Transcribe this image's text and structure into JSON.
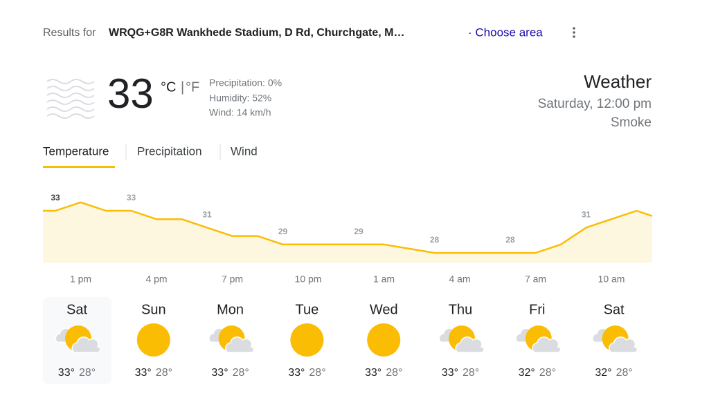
{
  "header": {
    "prefix": "Results for",
    "location": "WRQG+G8R Wankhede Stadium, D Rd, Churchgate, M…",
    "choose_area": "· Choose area"
  },
  "current": {
    "temperature": "33",
    "unit_c": "°C",
    "separator": "|",
    "unit_f": "°F",
    "precipitation": "Precipitation: 0%",
    "humidity": "Humidity: 52%",
    "wind": "Wind: 14 km/h"
  },
  "summary": {
    "title": "Weather",
    "time": "Saturday, 12:00 pm",
    "condition": "Smoke"
  },
  "tabs": [
    "Temperature",
    "Precipitation",
    "Wind"
  ],
  "chart": {
    "values": [
      33,
      34,
      33,
      33,
      32,
      32,
      31,
      30,
      30,
      29,
      29,
      29,
      29,
      29,
      28.5,
      28,
      28,
      28,
      28,
      28,
      29,
      31,
      32,
      33,
      32
    ],
    "ylim": [
      28,
      33
    ],
    "time_labels": [
      "1 pm",
      "4 pm",
      "7 pm",
      "10 pm",
      "1 am",
      "4 am",
      "7 am",
      "10 am"
    ]
  },
  "forecast": [
    {
      "day": "Sat",
      "icon": "partly-cloudy",
      "high": "33°",
      "low": "28°"
    },
    {
      "day": "Sun",
      "icon": "sun",
      "high": "33°",
      "low": "28°"
    },
    {
      "day": "Mon",
      "icon": "partly-cloudy",
      "high": "33°",
      "low": "28°"
    },
    {
      "day": "Tue",
      "icon": "sun",
      "high": "33°",
      "low": "28°"
    },
    {
      "day": "Wed",
      "icon": "sun",
      "high": "33°",
      "low": "28°"
    },
    {
      "day": "Thu",
      "icon": "partly-cloudy",
      "high": "33°",
      "low": "28°"
    },
    {
      "day": "Fri",
      "icon": "partly-cloudy",
      "high": "32°",
      "low": "28°"
    },
    {
      "day": "Sat",
      "icon": "partly-cloudy",
      "high": "32°",
      "low": "28°"
    }
  ]
}
